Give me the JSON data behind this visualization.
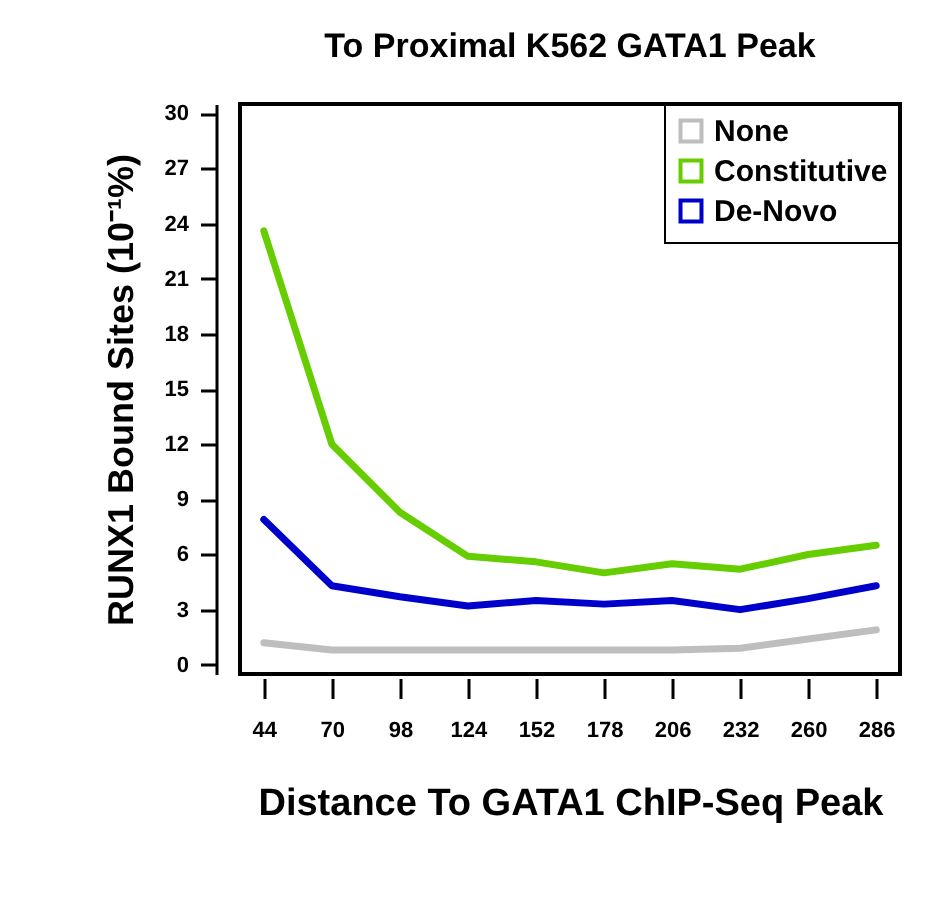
{
  "chart_data": {
    "type": "line",
    "title": "To Proximal K562 GATA1 Peak",
    "xlabel": "Distance To GATA1 ChIP-Seq Peak",
    "ylabel": "RUNX1 Bound Sites (10⁻¹%)",
    "categories": [
      "44",
      "70",
      "98",
      "124",
      "152",
      "178",
      "206",
      "232",
      "260",
      "286"
    ],
    "series": [
      {
        "name": "None",
        "color": "#bebebe",
        "values": [
          1.2,
          0.8,
          0.8,
          0.8,
          0.8,
          0.8,
          0.8,
          0.9,
          1.4,
          1.9
        ]
      },
      {
        "name": "Constitutive",
        "color": "#66cd00",
        "values": [
          23.6,
          12,
          8.3,
          5.9,
          5.6,
          5.0,
          5.5,
          5.2,
          6.0,
          6.5
        ]
      },
      {
        "name": "De-Novo",
        "color": "#0000cd",
        "values": [
          7.9,
          4.3,
          3.7,
          3.2,
          3.5,
          3.3,
          3.5,
          3.0,
          3.6,
          4.3
        ]
      }
    ],
    "ylim": [
      -0.5,
      30.5
    ],
    "yticks": [
      0,
      3,
      6,
      9,
      12,
      15,
      18,
      21,
      24,
      27,
      30
    ],
    "grid": false,
    "legend": "top right",
    "marker": "none",
    "line_style": "solid"
  }
}
